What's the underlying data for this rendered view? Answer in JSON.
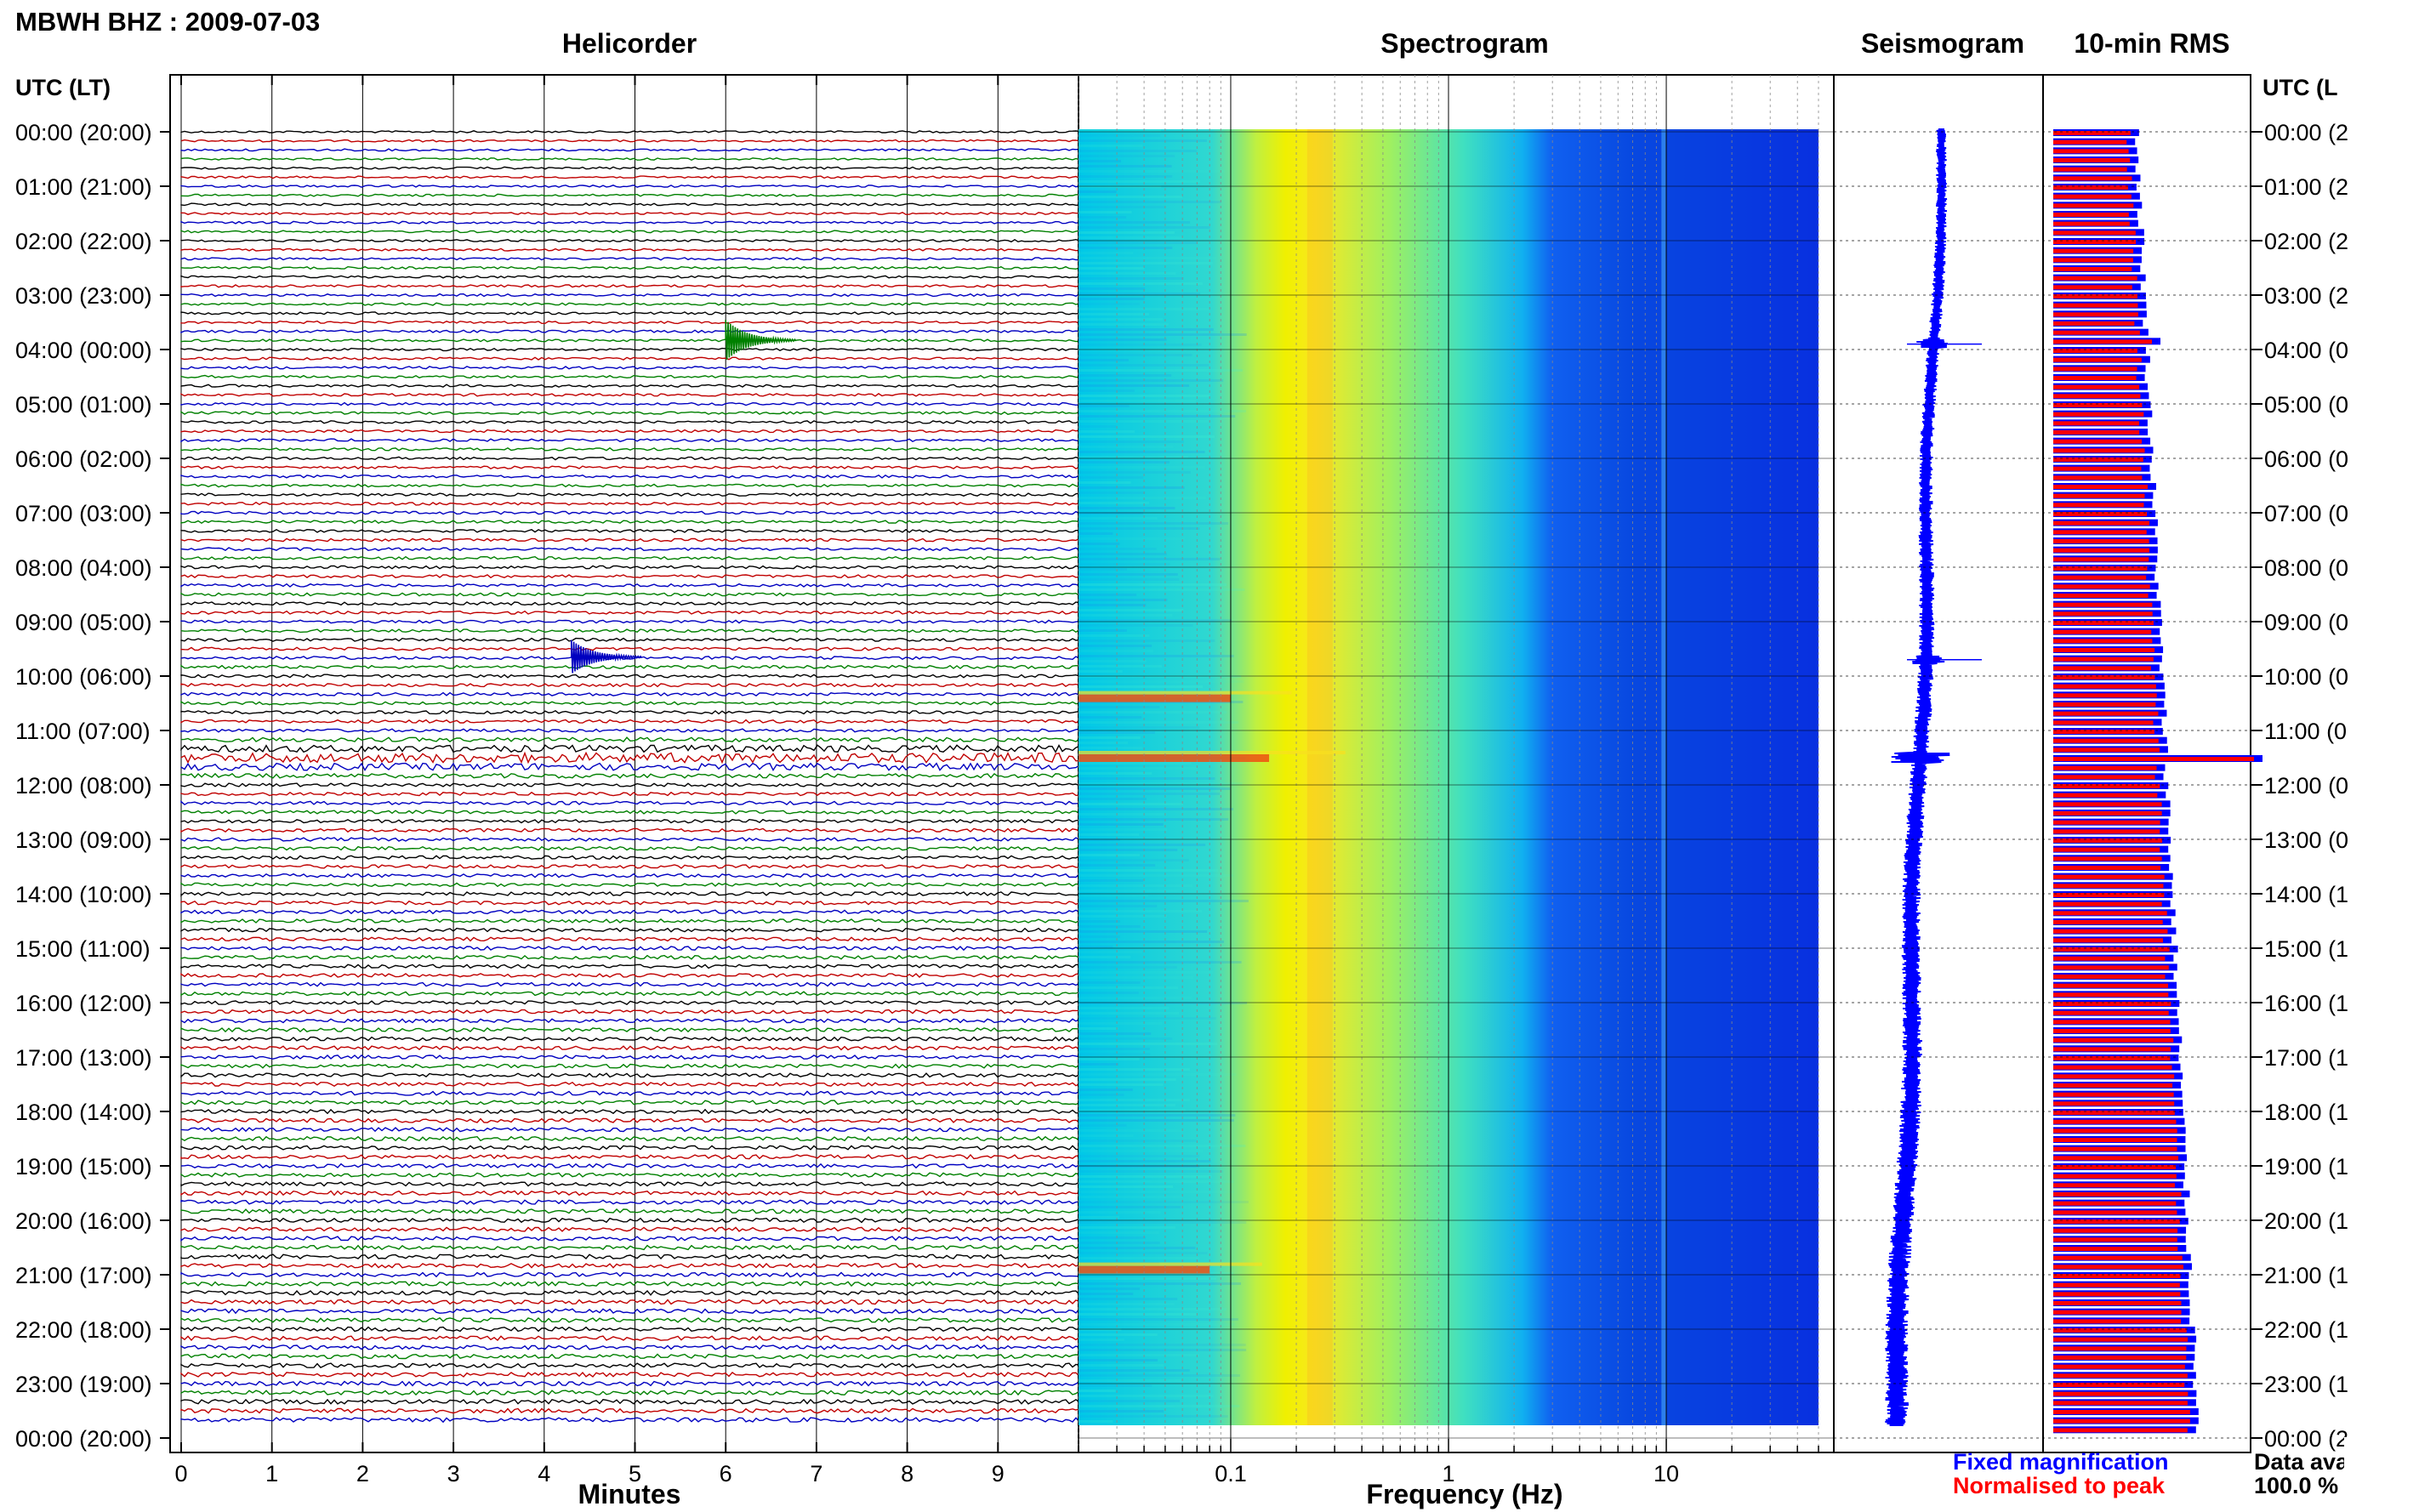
{
  "figure": {
    "title": "MBWH BHZ : 2009-07-03",
    "data_availability_label": "Data availability",
    "data_availability_value": "100.0 %"
  },
  "chart_data": [
    {
      "type": "line",
      "title": "Helicorder",
      "xlabel": "Minutes",
      "ylabel": "UTC (LT)",
      "x_ticks": [
        "0",
        "1",
        "2",
        "3",
        "4",
        "5",
        "6",
        "7",
        "8",
        "9"
      ],
      "xlim": [
        0,
        10
      ],
      "rows_per_hour": 6,
      "row_colors": [
        "#000000",
        "#c00000",
        "#0000c0",
        "#008000"
      ],
      "hour_labels": [
        "00:00 (20:00)",
        "01:00 (21:00)",
        "02:00 (22:00)",
        "03:00 (23:00)",
        "04:00 (00:00)",
        "05:00 (01:00)",
        "06:00 (02:00)",
        "07:00 (03:00)",
        "08:00 (04:00)",
        "09:00 (05:00)",
        "10:00 (06:00)",
        "11:00 (07:00)",
        "12:00 (08:00)",
        "13:00 (09:00)",
        "14:00 (10:00)",
        "15:00 (11:00)",
        "16:00 (12:00)",
        "17:00 (13:00)",
        "18:00 (14:00)",
        "19:00 (15:00)",
        "20:00 (16:00)",
        "21:00 (17:00)",
        "22:00 (18:00)",
        "23:00 (19:00)",
        "00:00 (20:00)"
      ],
      "events": [
        {
          "hour": 3.83,
          "minute": 6.0,
          "amplitude": 3.0,
          "color": "#008000"
        },
        {
          "hour": 9.65,
          "minute": 4.3,
          "amplitude": 2.5,
          "color": "#0000c0"
        },
        {
          "hour": 11.5,
          "minute": 0.0,
          "amplitude": 2.0,
          "span_minutes": 10,
          "color": "#000000"
        }
      ]
    },
    {
      "type": "heatmap",
      "title": "Spectrogram",
      "xlabel": "Frequency (Hz)",
      "x_scale": "log",
      "xlim": [
        0.02,
        50
      ],
      "x_ticks": [
        "0.1",
        "1",
        "10"
      ],
      "x_tick_values": [
        0.1,
        1,
        10
      ],
      "colormap": "jet",
      "features": [
        {
          "name": "microseism peak",
          "freq_hz": 0.25
        },
        {
          "name": "event",
          "hour": 11.5,
          "freq_range_hz": [
            0.02,
            0.15
          ]
        },
        {
          "name": "event",
          "hour": 10.4,
          "freq_range_hz": [
            0.02,
            0.1
          ]
        },
        {
          "name": "event",
          "hour": 20.9,
          "freq_range_hz": [
            0.02,
            0.08
          ]
        }
      ]
    },
    {
      "type": "line",
      "title": "Seismogram",
      "color": "#0000ff",
      "spikes_hours": [
        3.9,
        9.7,
        11.5
      ]
    },
    {
      "type": "bar",
      "title": "10-min RMS",
      "ylabel": "UTC (LT)",
      "series": [
        {
          "name": "Fixed magnification",
          "color": "#0000ff"
        },
        {
          "name": "Normalised to peak",
          "color": "#ff0000"
        }
      ],
      "peak_hour": 11.5,
      "hour_labels_right": [
        "00:00 (2",
        "01:00 (2",
        "02:00 (2",
        "03:00 (2",
        "04:00 (0",
        "05:00 (0",
        "06:00 (0",
        "07:00 (0",
        "08:00 (0",
        "09:00 (0",
        "10:00 (0",
        "11:00 (0",
        "12:00 (0",
        "13:00 (0",
        "14:00 (1",
        "15:00 (1",
        "16:00 (1",
        "17:00 (1",
        "18:00 (1",
        "19:00 (1",
        "20:00 (1",
        "21:00 (1",
        "22:00 (1",
        "23:00 (1",
        "00:00 (2"
      ]
    }
  ],
  "panels": {
    "helicorder": {
      "ylabel_left": "UTC (LT)"
    },
    "rms": {
      "ylabel_right": "UTC (L"
    }
  }
}
